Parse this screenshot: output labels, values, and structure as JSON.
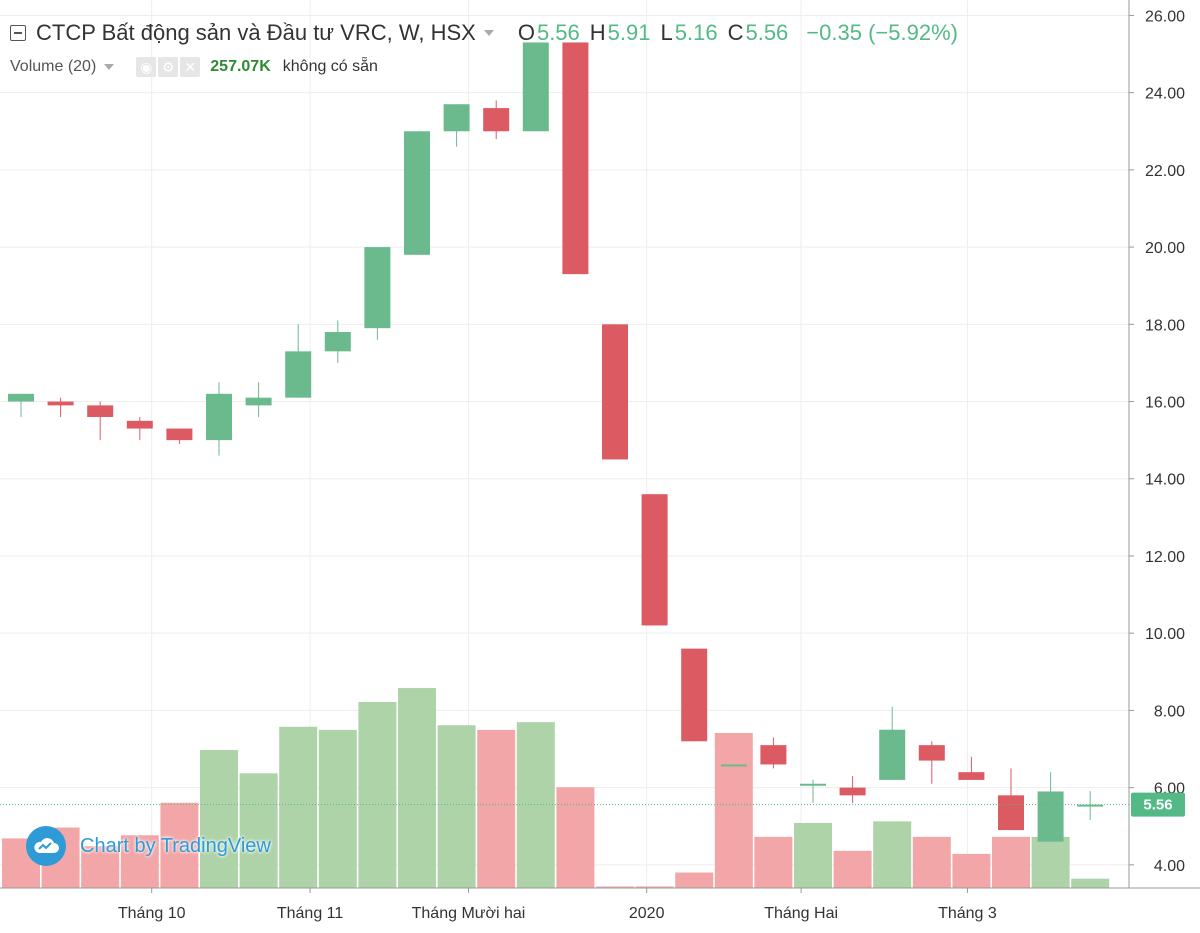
{
  "legend": {
    "title": "CTCP Bất động sản và Đầu tư VRC, W, HSX",
    "o_label": "O",
    "o_value": "5.56",
    "h_label": "H",
    "h_value": "5.91",
    "l_label": "L",
    "l_value": "5.16",
    "c_label": "C",
    "c_value": "5.56",
    "change": "−0.35 (−5.92%)"
  },
  "volume_legend": {
    "label": "Volume (20)",
    "value": "257.07K",
    "na_text": "không có sẵn",
    "eye_icon": "eye-icon",
    "gear_icon": "gear-icon",
    "close_icon": "close-icon"
  },
  "watermark": {
    "text": "Chart by TradingView",
    "icon": "tradingview-cloud-icon"
  },
  "colors": {
    "up": "#6bba8d",
    "down": "#dc5a62",
    "vol_up": "#afd3a9",
    "vol_down": "#f2a6a8",
    "price_line": "#53b987",
    "grid": "#eeeeee",
    "axis_text": "#333333"
  },
  "last_price_label": "5.56",
  "chart_data": {
    "type": "candlestick",
    "symbol": "CTCP Bất động sản và Đầu tư VRC",
    "interval": "W",
    "exchange": "HSX",
    "y_axis": {
      "ticks": [
        "4.00",
        "6.00",
        "8.00",
        "10.00",
        "12.00",
        "14.00",
        "16.00",
        "18.00",
        "20.00",
        "22.00",
        "24.00",
        "26.00"
      ],
      "range": [
        3.4,
        26.4
      ]
    },
    "x_axis": {
      "labels": [
        "Tháng 10",
        "Tháng 11",
        "Tháng Mười hai",
        "2020",
        "Tháng Hai",
        "Tháng 3"
      ],
      "label_bar_index": [
        3.3,
        7.3,
        11.3,
        15.8,
        19.7,
        23.9
      ]
    },
    "last_price": 5.56,
    "candles": [
      {
        "o": 16.0,
        "h": 16.2,
        "l": 15.6,
        "c": 16.2
      },
      {
        "o": 16.0,
        "h": 16.1,
        "l": 15.6,
        "c": 15.9
      },
      {
        "o": 15.9,
        "h": 16.0,
        "l": 15.0,
        "c": 15.6
      },
      {
        "o": 15.5,
        "h": 15.6,
        "l": 15.0,
        "c": 15.3
      },
      {
        "o": 15.3,
        "h": 15.3,
        "l": 14.9,
        "c": 15.0
      },
      {
        "o": 15.0,
        "h": 16.5,
        "l": 14.6,
        "c": 16.2
      },
      {
        "o": 15.9,
        "h": 16.5,
        "l": 15.6,
        "c": 16.1
      },
      {
        "o": 16.1,
        "h": 18.0,
        "l": 16.1,
        "c": 17.3
      },
      {
        "o": 17.3,
        "h": 18.1,
        "l": 17.0,
        "c": 17.8
      },
      {
        "o": 17.9,
        "h": 20.0,
        "l": 17.6,
        "c": 20.0
      },
      {
        "o": 19.8,
        "h": 23.0,
        "l": 19.8,
        "c": 23.0
      },
      {
        "o": 23.0,
        "h": 23.7,
        "l": 22.6,
        "c": 23.7
      },
      {
        "o": 23.6,
        "h": 23.8,
        "l": 22.8,
        "c": 23.0
      },
      {
        "o": 23.0,
        "h": 25.3,
        "l": 23.0,
        "c": 25.3
      },
      {
        "o": 25.3,
        "h": 25.3,
        "l": 19.3,
        "c": 19.3
      },
      {
        "o": 18.0,
        "h": 18.0,
        "l": 14.5,
        "c": 14.5
      },
      {
        "o": 13.6,
        "h": 13.6,
        "l": 10.2,
        "c": 10.2
      },
      {
        "o": 9.6,
        "h": 9.6,
        "l": 7.2,
        "c": 7.2
      },
      {
        "o": 6.6,
        "h": 6.6,
        "l": 6.6,
        "c": 6.6
      },
      {
        "o": 7.1,
        "h": 7.3,
        "l": 6.5,
        "c": 6.6
      },
      {
        "o": 6.1,
        "h": 6.2,
        "l": 5.6,
        "c": 6.1
      },
      {
        "o": 6.0,
        "h": 6.3,
        "l": 5.6,
        "c": 5.8
      },
      {
        "o": 6.2,
        "h": 8.1,
        "l": 6.2,
        "c": 7.5
      },
      {
        "o": 7.1,
        "h": 7.2,
        "l": 6.1,
        "c": 6.7
      },
      {
        "o": 6.4,
        "h": 6.8,
        "l": 6.2,
        "c": 6.2
      },
      {
        "o": 5.8,
        "h": 6.5,
        "l": 4.9,
        "c": 4.9
      },
      {
        "o": 4.6,
        "h": 6.4,
        "l": 4.6,
        "c": 5.9
      },
      {
        "o": 5.56,
        "h": 5.91,
        "l": 5.16,
        "c": 5.56
      }
    ],
    "volume": [
      {
        "v": 0.32,
        "dir": "down"
      },
      {
        "v": 0.39,
        "dir": "down"
      },
      {
        "v": 0.27,
        "dir": "down"
      },
      {
        "v": 0.34,
        "dir": "down"
      },
      {
        "v": 0.55,
        "dir": "down"
      },
      {
        "v": 0.89,
        "dir": "up"
      },
      {
        "v": 0.74,
        "dir": "up"
      },
      {
        "v": 1.04,
        "dir": "up"
      },
      {
        "v": 1.02,
        "dir": "up"
      },
      {
        "v": 1.2,
        "dir": "up"
      },
      {
        "v": 1.29,
        "dir": "up"
      },
      {
        "v": 1.05,
        "dir": "up"
      },
      {
        "v": 1.02,
        "dir": "down"
      },
      {
        "v": 1.07,
        "dir": "up"
      },
      {
        "v": 0.65,
        "dir": "down"
      },
      {
        "v": 0.01,
        "dir": "down"
      },
      {
        "v": 0.01,
        "dir": "down"
      },
      {
        "v": 0.1,
        "dir": "down"
      },
      {
        "v": 1.0,
        "dir": "down"
      },
      {
        "v": 0.33,
        "dir": "down"
      },
      {
        "v": 0.42,
        "dir": "up"
      },
      {
        "v": 0.24,
        "dir": "down"
      },
      {
        "v": 0.43,
        "dir": "up"
      },
      {
        "v": 0.33,
        "dir": "down"
      },
      {
        "v": 0.22,
        "dir": "down"
      },
      {
        "v": 0.33,
        "dir": "down"
      },
      {
        "v": 0.33,
        "dir": "up"
      },
      {
        "v": 0.06,
        "dir": "up"
      }
    ],
    "volume_units": "relative",
    "volume_ylim": [
      0,
      1.6
    ]
  }
}
